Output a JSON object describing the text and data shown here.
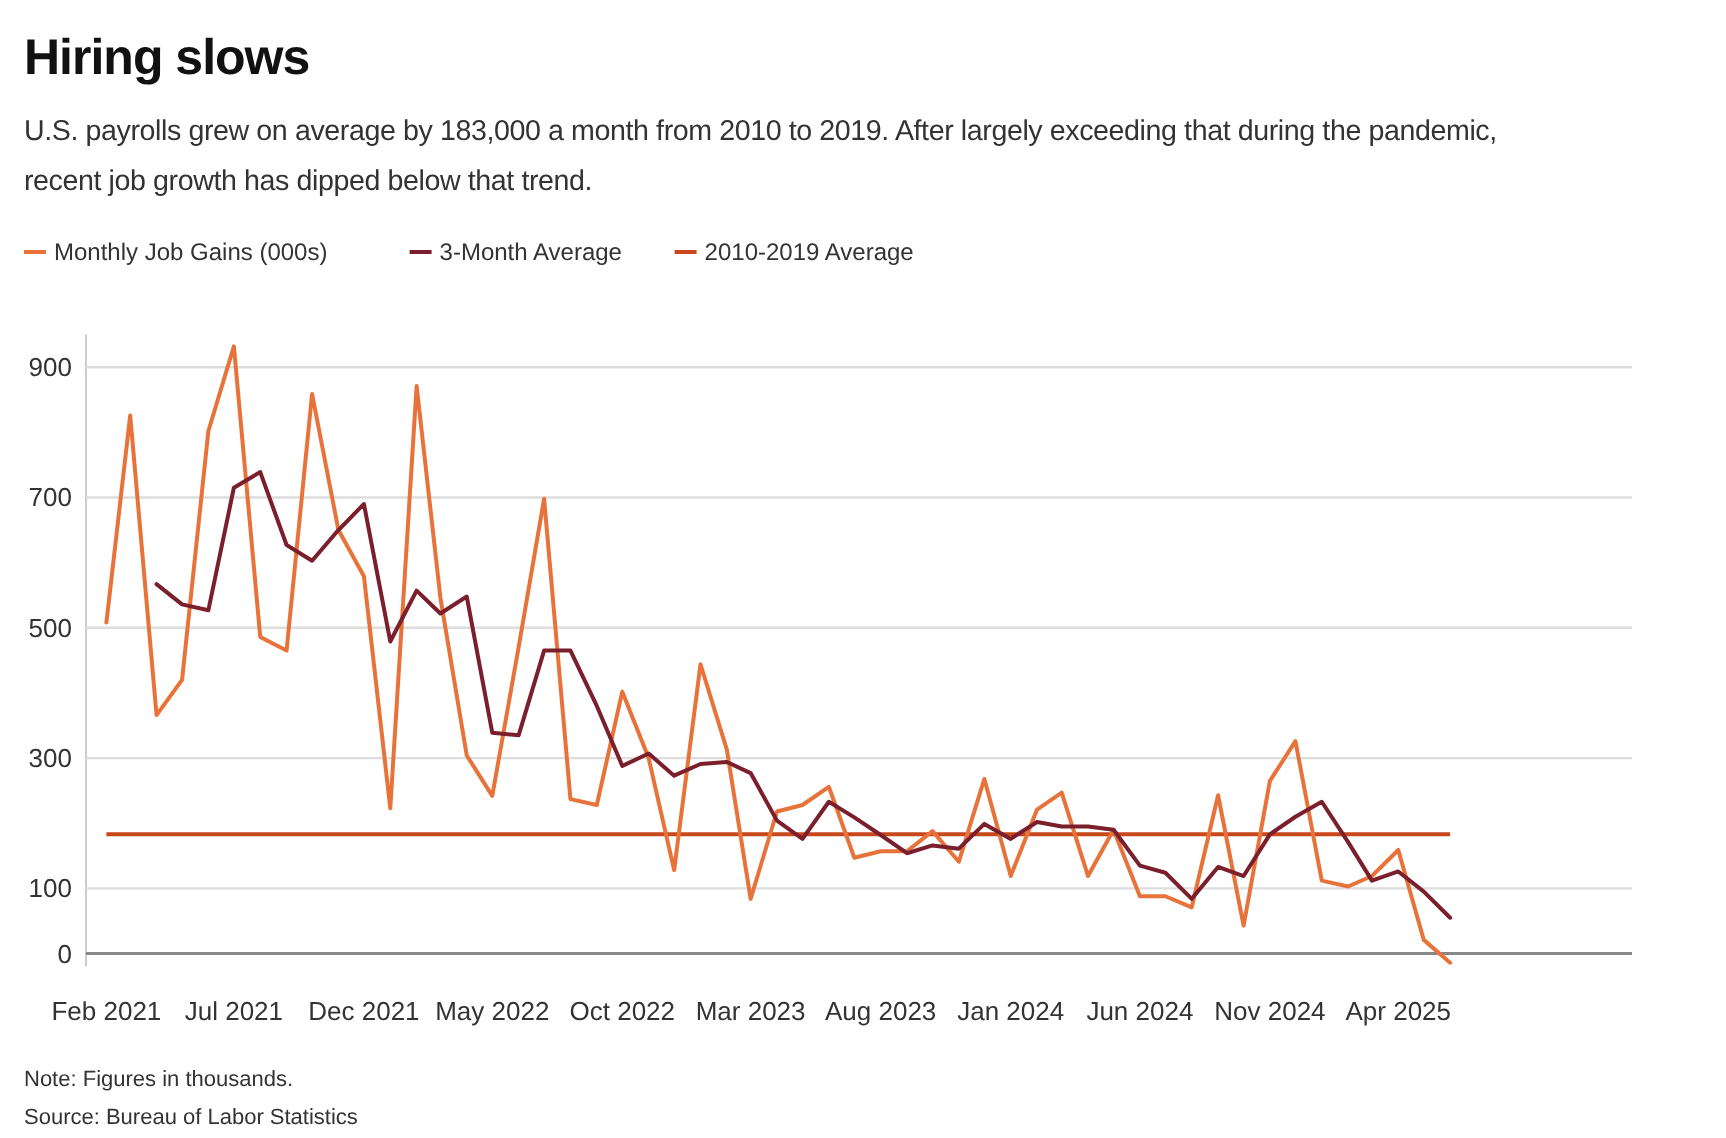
{
  "chart_data": {
    "type": "line",
    "title": "Hiring slows",
    "subtitle": "U.S. payrolls grew on average by 183,000 a month from 2010 to 2019. After largely exceeding that during the pandemic, recent job growth has dipped below that trend.",
    "annotations": [
      "Note: Figures in thousands.",
      "Source: Bureau of Labor Statistics"
    ],
    "x": [
      "2021-02",
      "2021-03",
      "2021-04",
      "2021-05",
      "2021-06",
      "2021-07",
      "2021-08",
      "2021-09",
      "2021-10",
      "2021-11",
      "2021-12",
      "2022-01",
      "2022-02",
      "2022-03",
      "2022-04",
      "2022-05",
      "2022-06",
      "2022-07",
      "2022-08",
      "2022-09",
      "2022-10",
      "2022-11",
      "2022-12",
      "2023-01",
      "2023-02",
      "2023-03",
      "2023-04",
      "2023-05",
      "2023-06",
      "2023-07",
      "2023-08",
      "2023-09",
      "2023-10",
      "2023-11",
      "2023-12",
      "2024-01",
      "2024-02",
      "2024-03",
      "2024-04",
      "2024-05",
      "2024-06",
      "2024-07",
      "2024-08",
      "2024-09",
      "2024-10",
      "2024-11",
      "2024-12",
      "2025-01",
      "2025-02",
      "2025-03",
      "2025-04",
      "2025-05",
      "2025-06"
    ],
    "series": [
      {
        "name": "Monthly Job Gains (000s)",
        "color": "#e8733a",
        "values": [
          508,
          826,
          366,
          420,
          802,
          932,
          486,
          465,
          859,
          650,
          579,
          223,
          871,
          546,
          304,
          242,
          470,
          698,
          237,
          228,
          402,
          300,
          128,
          444,
          313,
          84,
          218,
          228,
          256,
          147,
          157,
          157,
          188,
          141,
          268,
          119,
          221,
          247,
          119,
          190,
          88,
          88,
          71,
          243,
          43,
          265,
          326,
          112,
          103,
          119,
          159,
          21,
          -14
        ]
      },
      {
        "name": "3-Month Average",
        "color": "#7a1f2b",
        "values": [
          null,
          null,
          567,
          536,
          527,
          715,
          739,
          627,
          603,
          650,
          690,
          479,
          557,
          522,
          548,
          339,
          335,
          465,
          465,
          380,
          288,
          307,
          273,
          291,
          294,
          277,
          204,
          176,
          233,
          209,
          182,
          154,
          166,
          161,
          199,
          176,
          202,
          195,
          195,
          190,
          135,
          124,
          84,
          133,
          119,
          183,
          210,
          233,
          171,
          112,
          126,
          95,
          55
        ]
      }
    ],
    "ref_lines": [
      {
        "axis": "y",
        "value": 183,
        "label": "2010-2019 Average",
        "color": "#c8471b",
        "line_style": "solid"
      }
    ],
    "xlim": [
      "2021-01-08",
      "2026-01-01"
    ],
    "xticks": [
      {
        "value": "2021-02",
        "label": "Feb 2021"
      },
      {
        "value": "2021-07",
        "label": "Jul 2021"
      },
      {
        "value": "2021-12",
        "label": "Dec 2021"
      },
      {
        "value": "2022-05",
        "label": "May 2022"
      },
      {
        "value": "2022-10",
        "label": "Oct 2022"
      },
      {
        "value": "2023-03",
        "label": "Mar 2023"
      },
      {
        "value": "2023-08",
        "label": "Aug 2023"
      },
      {
        "value": "2024-01",
        "label": "Jan 2024"
      },
      {
        "value": "2024-06",
        "label": "Jun 2024"
      },
      {
        "value": "2024-11",
        "label": "Nov 2024"
      },
      {
        "value": "2025-04",
        "label": "Apr 2025"
      }
    ],
    "ylim": [
      -20,
      950
    ],
    "yticks": [
      0,
      100,
      300,
      500,
      700,
      900
    ],
    "grid": "y",
    "legend": "top left",
    "marker": "none",
    "line_style": "solid"
  }
}
